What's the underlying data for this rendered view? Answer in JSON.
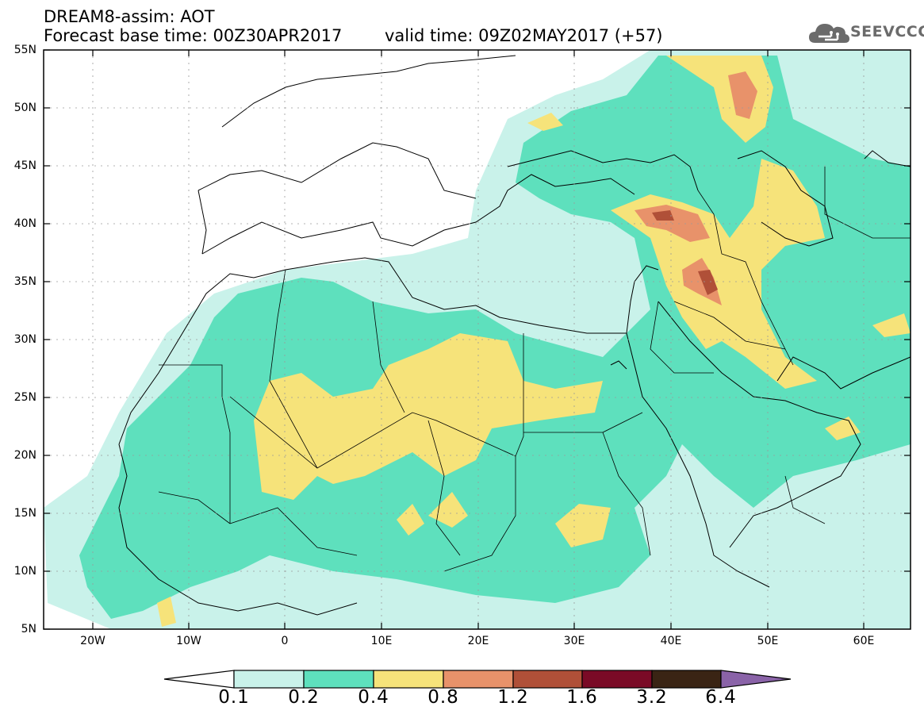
{
  "header": {
    "model": "DREAM8-assim: AOT",
    "base_time": "Forecast base time: 00Z30APR2017",
    "valid_time": "valid time: 09Z02MAY2017 (+57)"
  },
  "logo": {
    "text": "SEEVCCC",
    "icon": "cloud-icon"
  },
  "map": {
    "lat_labels": [
      "55N",
      "50N",
      "45N",
      "40N",
      "35N",
      "30N",
      "25N",
      "20N",
      "15N",
      "10N",
      "5N"
    ],
    "lon_labels": [
      "20W",
      "10W",
      "0",
      "10E",
      "20E",
      "30E",
      "40E",
      "50E",
      "60E"
    ]
  },
  "colorbar": {
    "labels": [
      "0.1",
      "0.2",
      "0.4",
      "0.8",
      "1.2",
      "1.6",
      "3.2",
      "6.4"
    ],
    "colors": [
      "#ffffff",
      "#c9f2ea",
      "#5ee0bd",
      "#f6e37a",
      "#e8926a",
      "#b05038",
      "#7a0a26",
      "#3a2414",
      "#8a63a8"
    ]
  },
  "palette": {
    "light": "#c9f2ea",
    "green": "#5ee0bd",
    "yellow": "#f6e37a",
    "orange": "#e8926a",
    "red": "#b05038"
  }
}
